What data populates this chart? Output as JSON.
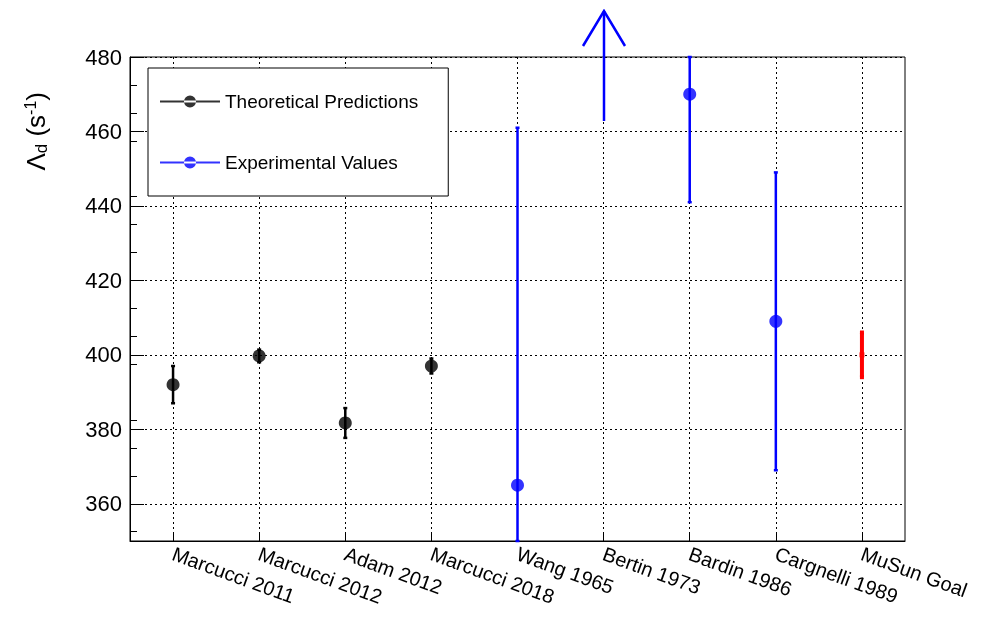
{
  "chart_data": {
    "type": "scatter",
    "ylabel": "Λ$_{d}$ (s$^{-1}$)",
    "categories": [
      "Marcucci 2011",
      "Marcucci 2012",
      "Adam 2012",
      "Marcucci 2018",
      "Wang 1965",
      "Bertin 1973",
      "Bardin 1986",
      "Cargnelli 1989",
      "MuSun Goal"
    ],
    "series": [
      {
        "name": "Theoretical Predictions",
        "color": "#000000",
        "values": [
          392,
          399.7,
          381.7,
          397,
          null,
          null,
          null,
          null,
          null
        ],
        "errors": [
          5,
          1.7,
          4,
          2,
          null,
          null,
          null,
          null,
          null
        ]
      },
      {
        "name": "Experimental Values",
        "color": "#0000ff",
        "values": [
          null,
          null,
          null,
          null,
          365,
          null,
          470,
          409,
          null
        ],
        "errors": [
          null,
          null,
          null,
          null,
          [
            350,
            461
          ],
          null,
          [
            441,
            480
          ],
          [
            369,
            449
          ],
          null
        ]
      },
      {
        "color": "#ff0000",
        "marker": "square",
        "values": [
          null,
          null,
          null,
          null,
          null,
          null,
          null,
          null,
          400
        ],
        "errors": [
          null,
          null,
          null,
          null,
          null,
          null,
          null,
          null,
          6
        ]
      }
    ],
    "ylim": [
      350,
      480
    ],
    "yticks": [
      360,
      380,
      400,
      420,
      440,
      460,
      480
    ],
    "grid": true,
    "legend": "top left",
    "marker": "circle"
  }
}
